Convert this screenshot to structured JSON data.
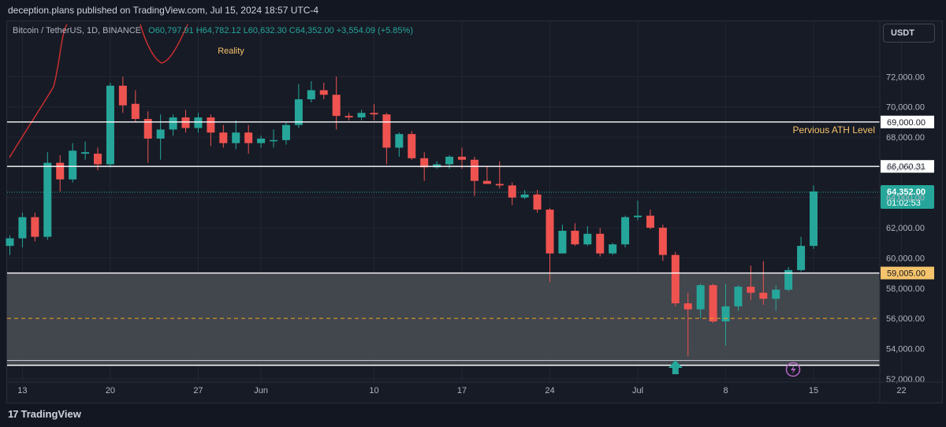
{
  "header": {
    "publisher_line": "deception.plans published on TradingView.com, Jul 15, 2024 18:57 UTC-4"
  },
  "legend": {
    "symbol": "Bitcoin / TetherUS, 1D, BINANCE",
    "open": "O60,797.91",
    "high": "H64,782.12",
    "low": "L60,632.30",
    "close": "C64,352.00",
    "change": "+3,554.09 (+5.85%)"
  },
  "currency_button": "USDT",
  "footer": {
    "brand": "TradingView",
    "brand_mark": "17"
  },
  "colors": {
    "up": "#26a69a",
    "down": "#ef5350",
    "background": "#171b26",
    "annotation": "#f5c36b",
    "zone": "#4a4d55"
  },
  "icons": [
    "arrow-up-icon",
    "lightning-icon",
    "tradingview-logo-icon"
  ],
  "chart_data": {
    "type": "candlestick",
    "symbol": "BTCUSDT",
    "timeframe": "1D",
    "ylim": [
      51500,
      73500
    ],
    "yticks": [
      52000,
      54000,
      56000,
      58000,
      60000,
      62000,
      64000,
      66000,
      68000,
      70000,
      72000
    ],
    "ytick_labels": [
      "52,000.00",
      "54,000.00",
      "56,000.00",
      "58,000.00",
      "60,000.00",
      "62,000.00",
      "64,000.00",
      "66,000.00",
      "68,000.00",
      "70,000.00",
      "72,000.00"
    ],
    "xtick_labels": [
      {
        "label": "13",
        "index": 1
      },
      {
        "label": "20",
        "index": 8
      },
      {
        "label": "27",
        "index": 15
      },
      {
        "label": "Jun",
        "index": 20
      },
      {
        "label": "10",
        "index": 29
      },
      {
        "label": "17",
        "index": 36
      },
      {
        "label": "24",
        "index": 43
      },
      {
        "label": "Jul",
        "index": 50
      },
      {
        "label": "8",
        "index": 57
      },
      {
        "label": "15",
        "index": 64
      },
      {
        "label": "22",
        "index": 71
      }
    ],
    "candles": [
      {
        "o": 60800,
        "h": 61500,
        "l": 60200,
        "c": 61300
      },
      {
        "o": 61300,
        "h": 63000,
        "l": 60700,
        "c": 62700
      },
      {
        "o": 62700,
        "h": 63000,
        "l": 61100,
        "c": 61400
      },
      {
        "o": 61400,
        "h": 67000,
        "l": 61200,
        "c": 66300
      },
      {
        "o": 66300,
        "h": 66800,
        "l": 64400,
        "c": 65200
      },
      {
        "o": 65200,
        "h": 67600,
        "l": 65000,
        "c": 67100
      },
      {
        "o": 66900,
        "h": 67700,
        "l": 66500,
        "c": 67000
      },
      {
        "o": 66900,
        "h": 67300,
        "l": 65800,
        "c": 66200
      },
      {
        "o": 66200,
        "h": 71600,
        "l": 66000,
        "c": 71400
      },
      {
        "o": 71400,
        "h": 72000,
        "l": 69600,
        "c": 70100
      },
      {
        "o": 70200,
        "h": 71100,
        "l": 69000,
        "c": 69200
      },
      {
        "o": 69200,
        "h": 69700,
        "l": 66300,
        "c": 67900
      },
      {
        "o": 67900,
        "h": 69500,
        "l": 66500,
        "c": 68500
      },
      {
        "o": 68500,
        "h": 69500,
        "l": 68100,
        "c": 69300
      },
      {
        "o": 69300,
        "h": 69800,
        "l": 68300,
        "c": 68600
      },
      {
        "o": 68600,
        "h": 69600,
        "l": 68300,
        "c": 69300
      },
      {
        "o": 69300,
        "h": 69500,
        "l": 67400,
        "c": 68300
      },
      {
        "o": 68300,
        "h": 68800,
        "l": 67300,
        "c": 67600
      },
      {
        "o": 67600,
        "h": 69100,
        "l": 67200,
        "c": 68300
      },
      {
        "o": 68300,
        "h": 68800,
        "l": 66900,
        "c": 67600
      },
      {
        "o": 67600,
        "h": 68100,
        "l": 67300,
        "c": 67900
      },
      {
        "o": 67800,
        "h": 68500,
        "l": 67300,
        "c": 67800
      },
      {
        "o": 67800,
        "h": 69000,
        "l": 67500,
        "c": 68800
      },
      {
        "o": 68800,
        "h": 71500,
        "l": 68600,
        "c": 70500
      },
      {
        "o": 70500,
        "h": 71700,
        "l": 70300,
        "c": 71100
      },
      {
        "o": 71100,
        "h": 71600,
        "l": 70500,
        "c": 70800
      },
      {
        "o": 70800,
        "h": 72000,
        "l": 68500,
        "c": 69400
      },
      {
        "o": 69400,
        "h": 69600,
        "l": 69100,
        "c": 69300
      },
      {
        "o": 69300,
        "h": 69800,
        "l": 69100,
        "c": 69600
      },
      {
        "o": 69600,
        "h": 70200,
        "l": 69100,
        "c": 69500
      },
      {
        "o": 69500,
        "h": 69600,
        "l": 66200,
        "c": 67300
      },
      {
        "o": 67300,
        "h": 68300,
        "l": 66700,
        "c": 68200
      },
      {
        "o": 68200,
        "h": 68400,
        "l": 66500,
        "c": 66600
      },
      {
        "o": 66600,
        "h": 67000,
        "l": 65100,
        "c": 66000
      },
      {
        "o": 66000,
        "h": 66400,
        "l": 65900,
        "c": 66200
      },
      {
        "o": 66200,
        "h": 66800,
        "l": 65900,
        "c": 66700
      },
      {
        "o": 66700,
        "h": 67300,
        "l": 65900,
        "c": 66500
      },
      {
        "o": 66500,
        "h": 66700,
        "l": 64100,
        "c": 65100
      },
      {
        "o": 65100,
        "h": 66100,
        "l": 64900,
        "c": 64900
      },
      {
        "o": 64900,
        "h": 66400,
        "l": 64600,
        "c": 64800
      },
      {
        "o": 64800,
        "h": 65000,
        "l": 63500,
        "c": 64000
      },
      {
        "o": 64000,
        "h": 64500,
        "l": 63900,
        "c": 64200
      },
      {
        "o": 64200,
        "h": 64500,
        "l": 63000,
        "c": 63200
      },
      {
        "o": 63200,
        "h": 63300,
        "l": 58400,
        "c": 60300
      },
      {
        "o": 60300,
        "h": 62200,
        "l": 60300,
        "c": 61800
      },
      {
        "o": 61800,
        "h": 62300,
        "l": 60800,
        "c": 60900
      },
      {
        "o": 60900,
        "h": 62100,
        "l": 60800,
        "c": 61600
      },
      {
        "o": 61600,
        "h": 62000,
        "l": 60100,
        "c": 60300
      },
      {
        "o": 60300,
        "h": 61000,
        "l": 60200,
        "c": 60900
      },
      {
        "o": 60900,
        "h": 62800,
        "l": 60700,
        "c": 62700
      },
      {
        "o": 62700,
        "h": 63800,
        "l": 62500,
        "c": 62800
      },
      {
        "o": 62800,
        "h": 63200,
        "l": 61900,
        "c": 62000
      },
      {
        "o": 62000,
        "h": 62200,
        "l": 59800,
        "c": 60200
      },
      {
        "o": 60200,
        "h": 60400,
        "l": 56800,
        "c": 57000
      },
      {
        "o": 57000,
        "h": 57700,
        "l": 53500,
        "c": 56600
      },
      {
        "o": 56600,
        "h": 58300,
        "l": 56000,
        "c": 58200
      },
      {
        "o": 58200,
        "h": 58300,
        "l": 55700,
        "c": 55800
      },
      {
        "o": 55800,
        "h": 58300,
        "l": 54200,
        "c": 56800
      },
      {
        "o": 56800,
        "h": 58200,
        "l": 56500,
        "c": 58100
      },
      {
        "o": 58100,
        "h": 59500,
        "l": 57200,
        "c": 57700
      },
      {
        "o": 57700,
        "h": 59800,
        "l": 56900,
        "c": 57300
      },
      {
        "o": 57300,
        "h": 58200,
        "l": 56500,
        "c": 57900
      },
      {
        "o": 57900,
        "h": 59400,
        "l": 57800,
        "c": 59200
      },
      {
        "o": 59200,
        "h": 61400,
        "l": 59100,
        "c": 60800
      },
      {
        "o": 60800,
        "h": 64800,
        "l": 60600,
        "c": 64400
      }
    ],
    "levels": [
      {
        "value": 69000,
        "label": "69,000.00",
        "style": "solid",
        "color": "#ffffff"
      },
      {
        "value": 66060.31,
        "label": "66,060.31",
        "style": "solid",
        "color": "#ffffff"
      },
      {
        "value": 59005,
        "label": "59,005.00",
        "style": "solid",
        "color": "#ffffff",
        "label_bg": "#f5c36b"
      },
      {
        "value": 56000,
        "label": "",
        "style": "dashed",
        "color": "#f5a623"
      }
    ],
    "zone": {
      "from": 52900,
      "to": 59005
    },
    "current_price": {
      "value": 64352,
      "label": "64,352.00",
      "countdown": "01:02:53"
    },
    "annotations": {
      "ath_text": "Pervious ATH Level",
      "reality_text": "Reality"
    }
  }
}
